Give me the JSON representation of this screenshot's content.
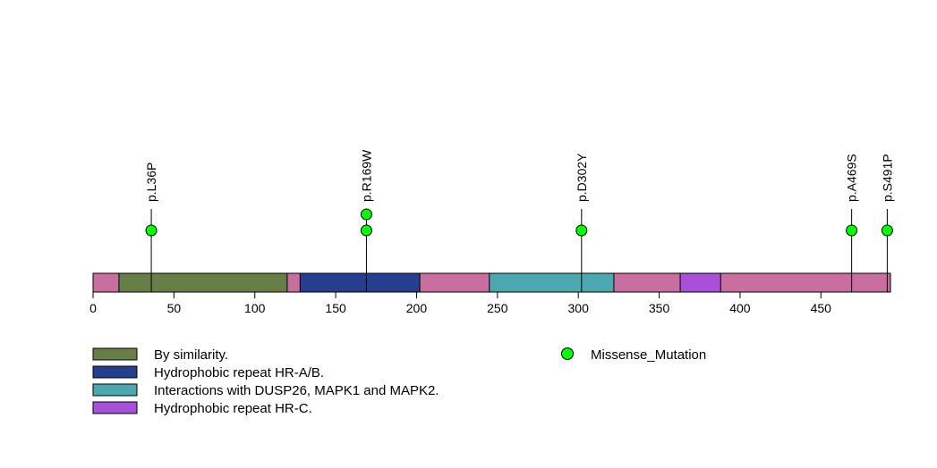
{
  "chart_data": {
    "type": "lollipop",
    "protein_length": 493,
    "x_axis": {
      "ticks": [
        0,
        50,
        100,
        150,
        200,
        250,
        300,
        350,
        400,
        450
      ],
      "tick_labels": [
        "0",
        "50",
        "100",
        "150",
        "200",
        "250",
        "300",
        "350",
        "400",
        "450"
      ]
    },
    "backbone_color": "#c86fa0",
    "domains": [
      {
        "start": 16,
        "end": 120,
        "label": "By similarity.",
        "color": "#677e49"
      },
      {
        "start": 128,
        "end": 202,
        "label": "Hydrophobic repeat HR-A/B.",
        "color": "#253f8e"
      },
      {
        "start": 245,
        "end": 322,
        "label": "Interactions with DUSP26, MAPK1 and MAPK2.",
        "color": "#4ba8af"
      },
      {
        "start": 363,
        "end": 388,
        "label": "Hydrophobic repeat HR-C.",
        "color": "#a94fd9"
      }
    ],
    "mutations": [
      {
        "position": 36,
        "label": "p.L36P",
        "count": 1,
        "type": "Missense_Mutation"
      },
      {
        "position": 169,
        "label": "p.R169W",
        "count": 2,
        "type": "Missense_Mutation"
      },
      {
        "position": 302,
        "label": "p.D302Y",
        "count": 1,
        "type": "Missense_Mutation"
      },
      {
        "position": 469,
        "label": "p.A469S",
        "count": 1,
        "type": "Missense_Mutation"
      },
      {
        "position": 491,
        "label": "p.S491P",
        "count": 1,
        "type": "Missense_Mutation"
      }
    ],
    "legend": {
      "domain_entries": [
        {
          "label": "By similarity.",
          "color": "#677e49"
        },
        {
          "label": "Hydrophobic repeat HR-A/B.",
          "color": "#253f8e"
        },
        {
          "label": "Interactions with DUSP26, MAPK1 and MAPK2.",
          "color": "#4ba8af"
        },
        {
          "label": "Hydrophobic repeat HR-C.",
          "color": "#a94fd9"
        }
      ],
      "mutation_entries": [
        {
          "label": "Missense_Mutation",
          "color": "#00ff00"
        }
      ]
    }
  }
}
